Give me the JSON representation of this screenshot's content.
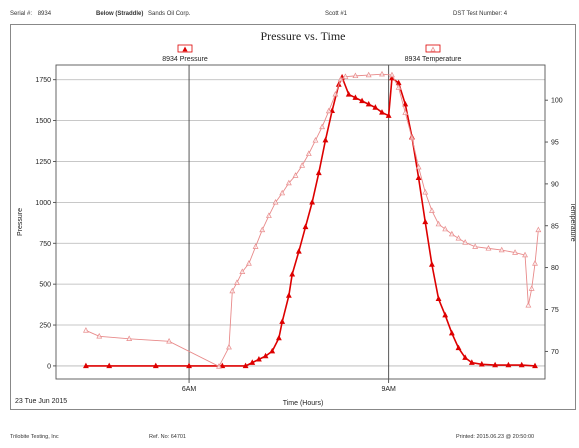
{
  "header": {
    "serial_label": "Serial #:",
    "serial_value": "8934",
    "position_label": "Below (Straddle)",
    "company": "Sands Oil Corp.",
    "well": "Scott #1",
    "test_number": "DST Test Number: 4"
  },
  "footer": {
    "company": "Trilobite Testing, Inc",
    "ref": "Ref. No:   64701",
    "printed": "Printed: 2015.06.23 @ 20:50:00"
  },
  "colors": {
    "pressure": "#dd0000",
    "temperature": "#e88a8a",
    "grid": "#b5b5b5",
    "axis": "#333333"
  },
  "chart_data": {
    "type": "line",
    "title": "Pressure vs. Time",
    "xlabel": "Time (Hours)",
    "ylabel": "Pressure",
    "y2label": "Temperature",
    "date_label": "23 Tue Jun 2015",
    "x_unit": "hours",
    "xlim": [
      4.0,
      11.35
    ],
    "xticks": [
      {
        "value": 6.0,
        "label": "6AM"
      },
      {
        "value": 9.0,
        "label": "9AM"
      }
    ],
    "ylim": [
      -80,
      1840
    ],
    "yticks": [
      0,
      250,
      500,
      750,
      1000,
      1250,
      1500,
      1750
    ],
    "y2lim": [
      66.7,
      104.2
    ],
    "y2ticks": [
      70,
      75,
      80,
      85,
      90,
      95,
      100
    ],
    "grid": true,
    "legend": [
      {
        "series": "8934 Pressure",
        "marker": "filled-triangle",
        "position": "top-left"
      },
      {
        "series": "8934 Temperature",
        "marker": "open-triangle",
        "position": "top-right"
      }
    ],
    "series": [
      {
        "name": "8934 Pressure",
        "axis": "left",
        "marker": "filled-triangle",
        "x": [
          4.45,
          4.8,
          5.5,
          6.0,
          6.5,
          6.85,
          6.95,
          7.05,
          7.15,
          7.25,
          7.35,
          7.4,
          7.5,
          7.55,
          7.65,
          7.75,
          7.85,
          7.95,
          8.05,
          8.15,
          8.25,
          8.3,
          8.4,
          8.5,
          8.6,
          8.7,
          8.8,
          8.9,
          9.0,
          9.05,
          9.15,
          9.25,
          9.35,
          9.45,
          9.55,
          9.65,
          9.75,
          9.85,
          9.95,
          10.05,
          10.15,
          10.25,
          10.4,
          10.6,
          10.8,
          11.0,
          11.2
        ],
        "y": [
          0,
          0,
          0,
          0,
          0,
          0,
          20,
          40,
          60,
          90,
          170,
          270,
          430,
          560,
          700,
          850,
          1000,
          1180,
          1380,
          1560,
          1720,
          1765,
          1660,
          1640,
          1620,
          1600,
          1580,
          1550,
          1530,
          1760,
          1730,
          1600,
          1400,
          1150,
          880,
          620,
          410,
          310,
          200,
          110,
          50,
          20,
          10,
          5,
          5,
          5,
          0
        ]
      },
      {
        "name": "8934 Temperature",
        "axis": "right",
        "marker": "open-triangle",
        "x": [
          4.45,
          4.65,
          5.1,
          5.7,
          6.45,
          6.6,
          6.65,
          6.72,
          6.8,
          6.9,
          7.0,
          7.1,
          7.2,
          7.3,
          7.4,
          7.5,
          7.6,
          7.7,
          7.8,
          7.9,
          8.0,
          8.1,
          8.2,
          8.28,
          8.35,
          8.5,
          8.7,
          8.9,
          9.05,
          9.15,
          9.25,
          9.35,
          9.45,
          9.55,
          9.65,
          9.75,
          9.85,
          9.95,
          10.05,
          10.15,
          10.3,
          10.5,
          10.7,
          10.9,
          11.05,
          11.1,
          11.15,
          11.2,
          11.25
        ],
        "y": [
          72.5,
          71.8,
          71.5,
          71.2,
          68.2,
          70.5,
          77.2,
          78.2,
          79.5,
          80.5,
          82.5,
          84.5,
          86.2,
          87.8,
          88.9,
          90.1,
          91.0,
          92.2,
          93.6,
          95.2,
          96.8,
          98.7,
          100.7,
          102.5,
          102.8,
          102.9,
          103.0,
          103.1,
          103.0,
          101.5,
          98.5,
          95.5,
          92.0,
          89.0,
          86.8,
          85.2,
          84.6,
          84.0,
          83.5,
          83.0,
          82.5,
          82.3,
          82.1,
          81.8,
          81.5,
          75.5,
          77.5,
          80.5,
          84.5
        ]
      }
    ]
  }
}
